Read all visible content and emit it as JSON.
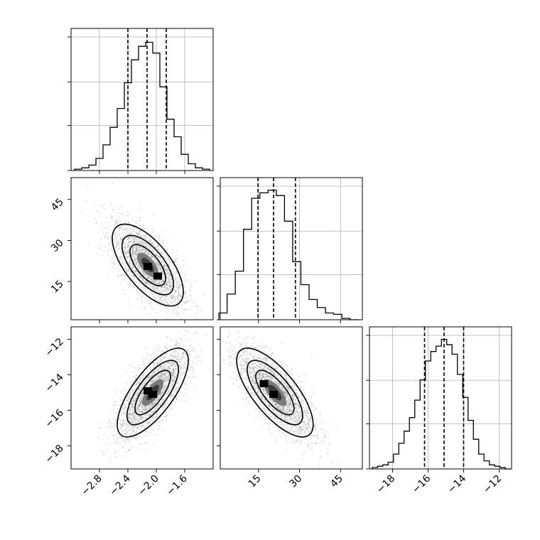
{
  "chart_data": {
    "type": "corner",
    "parameters": [
      {
        "range": [
          -3.2,
          -1.2
        ],
        "ticks": [
          -2.8,
          -2.4,
          -2.0,
          -1.6
        ],
        "tick_labels": [
          "−2.8",
          "−2.4",
          "−2.0",
          "−1.6"
        ]
      },
      {
        "range": [
          1,
          53
        ],
        "ticks": [
          15,
          30,
          45
        ],
        "tick_labels": [
          "15",
          "30",
          "45"
        ]
      },
      {
        "range": [
          -19.3,
          -11.3
        ],
        "ticks": [
          -18,
          -16,
          -14,
          -12
        ],
        "tick_labels": [
          "−18",
          "−16",
          "−14",
          "−12"
        ]
      }
    ],
    "histograms": [
      {
        "bins": [
          -3.1,
          -3.0,
          -2.9,
          -2.8,
          -2.7,
          -2.6,
          -2.5,
          -2.4,
          -2.3,
          -2.2,
          -2.1,
          -2.0,
          -1.9,
          -1.8,
          -1.7,
          -1.6,
          -1.5,
          -1.4,
          -1.3
        ],
        "counts": [
          0.01,
          0.02,
          0.04,
          0.09,
          0.19,
          0.32,
          0.46,
          0.65,
          0.82,
          0.92,
          0.95,
          0.87,
          0.62,
          0.38,
          0.25,
          0.12,
          0.05,
          0.02,
          0.01
        ],
        "quantiles": [
          -2.4,
          -2.13,
          -1.86
        ]
      },
      {
        "bins": [
          2,
          5,
          8,
          11,
          14,
          17,
          20,
          23,
          26,
          29,
          32,
          35,
          38,
          41,
          44,
          47,
          50
        ],
        "counts": [
          0.05,
          0.19,
          0.36,
          0.67,
          0.9,
          0.94,
          0.96,
          0.92,
          0.73,
          0.43,
          0.26,
          0.15,
          0.09,
          0.05,
          0.04,
          0.01,
          0.0
        ],
        "quantiles": [
          14.8,
          20.5,
          28.5
        ]
      },
      {
        "bins": [
          -19.0,
          -18.7,
          -18.4,
          -18.1,
          -17.8,
          -17.5,
          -17.2,
          -16.9,
          -16.6,
          -16.3,
          -16.0,
          -15.7,
          -15.4,
          -15.1,
          -14.8,
          -14.5,
          -14.2,
          -13.9,
          -13.6,
          -13.3,
          -13.0,
          -12.7,
          -12.4,
          -12.1,
          -11.8,
          -11.5
        ],
        "counts": [
          0.01,
          0.02,
          0.03,
          0.05,
          0.11,
          0.19,
          0.28,
          0.38,
          0.51,
          0.66,
          0.8,
          0.87,
          0.91,
          0.96,
          0.92,
          0.85,
          0.7,
          0.53,
          0.36,
          0.22,
          0.11,
          0.06,
          0.03,
          0.02,
          0.01,
          0.0
        ],
        "quantiles": [
          -16.2,
          -15.1,
          -14.0
        ]
      }
    ],
    "pairs": [
      {
        "x": 0,
        "y": 1,
        "mean": [
          -2.12,
          21.0
        ],
        "std": [
          0.25,
          7.5
        ],
        "corr": -0.65,
        "modes": [
          [
            -2.12,
            20.5
          ],
          [
            -1.98,
            17.0
          ]
        ]
      },
      {
        "x": 0,
        "y": 2,
        "mean": [
          -2.05,
          -15.0
        ],
        "std": [
          0.25,
          1.25
        ],
        "corr": 0.72,
        "modes": [
          [
            -2.05,
            -15.1
          ],
          [
            -2.12,
            -14.9
          ]
        ]
      },
      {
        "x": 1,
        "y": 2,
        "mean": [
          21.0,
          -15.0
        ],
        "std": [
          7.0,
          1.25
        ],
        "corr": -0.72,
        "modes": [
          [
            20.5,
            -15.1
          ],
          [
            17.0,
            -14.5
          ]
        ]
      }
    ],
    "grid": true,
    "xlabel": "",
    "ylabel": "",
    "title": ""
  }
}
